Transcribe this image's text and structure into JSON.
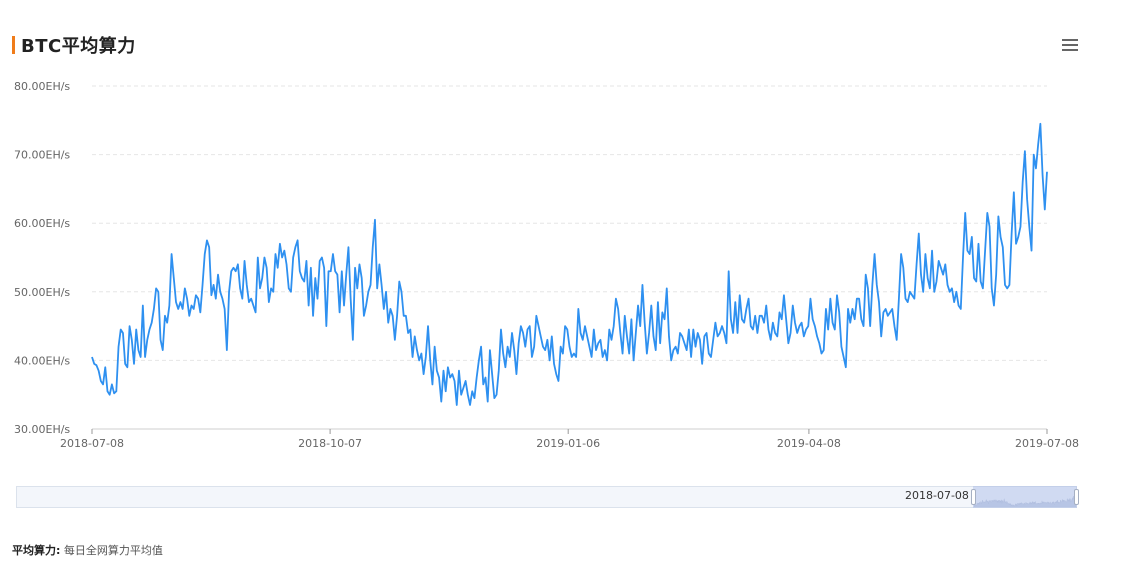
{
  "title": "BTC平均算力",
  "icons": {
    "menu": "hamburger-menu-icon"
  },
  "colors": {
    "line": "#2e90f0",
    "accent": "#f07c1a",
    "grid": "#e6e6e6"
  },
  "zoom": {
    "start_label": "2018-07-08"
  },
  "footnote": {
    "label": "平均算力:",
    "text": "每日全网算力平均值"
  },
  "chart_data": {
    "type": "line",
    "title": "BTC平均算力",
    "xlabel": "",
    "ylabel": "",
    "y_unit": "EH/s",
    "ylim": [
      30,
      80
    ],
    "yticks": [
      "30.00EH/s",
      "40.00EH/s",
      "50.00EH/s",
      "60.00EH/s",
      "70.00EH/s",
      "80.00EH/s"
    ],
    "xticks": [
      "2018-07-08",
      "2018-10-07",
      "2019-01-06",
      "2019-04-08",
      "2019-07-08"
    ],
    "x_range": [
      "2018-07-08",
      "2019-07-08"
    ],
    "grid": true,
    "series": [
      {
        "values": [
          40.5,
          39.5,
          39.3,
          38.5,
          37.0,
          36.5,
          39.0,
          35.5,
          35.0,
          36.5,
          35.2,
          35.5,
          42.0,
          44.5,
          44.0,
          39.5,
          39.0,
          45.0,
          43.0,
          39.5,
          44.5,
          41.5,
          40.5,
          48.0,
          40.5,
          43.0,
          44.5,
          45.5,
          47.5,
          50.5,
          50.0,
          43.0,
          41.5,
          46.5,
          45.5,
          48.0,
          55.5,
          52.0,
          48.5,
          47.5,
          48.5,
          47.5,
          50.5,
          49.0,
          46.5,
          48.0,
          47.5,
          49.5,
          49.0,
          47.0,
          51.0,
          55.5,
          57.5,
          56.5,
          49.5,
          51.0,
          49.0,
          52.5,
          50.0,
          49.0,
          47.5,
          41.5,
          50.0,
          53.0,
          53.5,
          53.0,
          54.0,
          50.5,
          49.0,
          54.5,
          51.0,
          48.5,
          49.0,
          48.0,
          47.0,
          55.0,
          50.5,
          52.0,
          55.0,
          53.5,
          48.5,
          50.5,
          50.0,
          55.5,
          53.5,
          57.0,
          55.0,
          56.0,
          54.0,
          50.5,
          50.0,
          55.0,
          56.5,
          57.5,
          53.0,
          52.0,
          51.5,
          54.5,
          48.0,
          53.5,
          46.5,
          52.0,
          49.0,
          54.5,
          55.0,
          53.5,
          45.0,
          53.0,
          53.0,
          55.5,
          53.0,
          52.5,
          47.0,
          53.0,
          48.0,
          52.5,
          56.5,
          49.0,
          43.0,
          53.5,
          50.5,
          54.0,
          52.0,
          46.5,
          48.0,
          50.0,
          51.0,
          56.5,
          60.5,
          50.5,
          54.0,
          51.0,
          47.5,
          50.0,
          45.5,
          47.5,
          46.5,
          43.0,
          46.5,
          51.5,
          50.0,
          46.5,
          46.5,
          44.0,
          44.5,
          40.5,
          43.5,
          41.5,
          40.0,
          41.0,
          38.0,
          40.5,
          45.0,
          40.0,
          36.5,
          42.0,
          38.5,
          37.5,
          34.0,
          38.5,
          35.5,
          39.0,
          37.5,
          38.0,
          37.0,
          33.5,
          38.5,
          35.0,
          36.0,
          37.0,
          35.0,
          33.5,
          35.5,
          34.5,
          37.5,
          40.0,
          42.0,
          36.5,
          37.5,
          34.0,
          41.5,
          38.0,
          34.5,
          35.0,
          38.5,
          44.5,
          41.0,
          39.0,
          42.0,
          40.5,
          44.0,
          41.5,
          38.0,
          42.5,
          45.0,
          44.0,
          42.0,
          44.5,
          45.0,
          40.5,
          42.0,
          46.5,
          45.0,
          43.5,
          42.0,
          41.5,
          43.0,
          40.0,
          43.5,
          39.5,
          38.0,
          37.0,
          42.0,
          41.0,
          45.0,
          44.5,
          42.0,
          40.5,
          41.0,
          40.5,
          47.5,
          44.0,
          43.0,
          45.0,
          43.5,
          42.0,
          40.5,
          44.5,
          41.5,
          42.5,
          43.0,
          40.5,
          41.5,
          40.0,
          44.5,
          43.0,
          45.0,
          49.0,
          47.5,
          44.0,
          41.0,
          46.5,
          43.5,
          41.0,
          46.0,
          40.0,
          44.0,
          48.0,
          45.0,
          51.0,
          45.5,
          41.0,
          44.0,
          48.0,
          43.5,
          41.5,
          48.5,
          42.5,
          47.0,
          46.0,
          50.5,
          43.5,
          40.0,
          41.5,
          42.0,
          41.0,
          44.0,
          43.5,
          42.5,
          41.5,
          44.5,
          40.5,
          44.5,
          42.0,
          44.0,
          43.0,
          39.5,
          43.5,
          44.0,
          41.0,
          40.5,
          43.0,
          45.5,
          43.5,
          44.0,
          45.0,
          44.0,
          42.5,
          53.0,
          46.0,
          44.0,
          48.5,
          44.0,
          49.5,
          46.0,
          45.5,
          47.5,
          49.0,
          45.0,
          44.5,
          46.5,
          44.0,
          46.5,
          46.5,
          45.5,
          48.0,
          44.5,
          43.0,
          45.5,
          44.0,
          43.5,
          47.0,
          46.0,
          49.5,
          46.0,
          42.5,
          44.0,
          48.0,
          45.5,
          44.0,
          45.0,
          45.5,
          43.5,
          44.5,
          45.0,
          49.0,
          46.0,
          45.0,
          43.5,
          42.5,
          41.0,
          41.5,
          47.5,
          44.5,
          49.0,
          45.5,
          44.5,
          49.5,
          47.0,
          42.0,
          40.5,
          39.0,
          47.5,
          45.5,
          47.5,
          46.0,
          49.0,
          49.0,
          46.0,
          45.0,
          52.5,
          50.5,
          45.0,
          51.0,
          55.5,
          51.0,
          48.5,
          43.5,
          47.0,
          47.5,
          46.5,
          47.0,
          47.5,
          45.0,
          43.0,
          49.0,
          55.5,
          53.5,
          49.0,
          48.5,
          50.0,
          49.5,
          49.0,
          54.0,
          58.5,
          52.5,
          50.0,
          55.5,
          52.0,
          50.5,
          56.0,
          50.0,
          51.5,
          54.5,
          53.5,
          52.5,
          54.0,
          51.0,
          50.0,
          50.5,
          48.5,
          50.0,
          48.0,
          47.5,
          55.0,
          61.5,
          56.0,
          55.5,
          58.0,
          52.0,
          51.5,
          57.0,
          51.5,
          50.5,
          56.0,
          61.5,
          59.5,
          50.5,
          48.0,
          52.5,
          61.0,
          58.0,
          56.5,
          51.0,
          50.5,
          51.0,
          58.5,
          64.5,
          57.0,
          58.0,
          59.5,
          66.0,
          70.5,
          63.5,
          59.5,
          56.0,
          70.0,
          68.0,
          71.5,
          74.5,
          67.0,
          62.0,
          67.5
        ]
      }
    ]
  }
}
